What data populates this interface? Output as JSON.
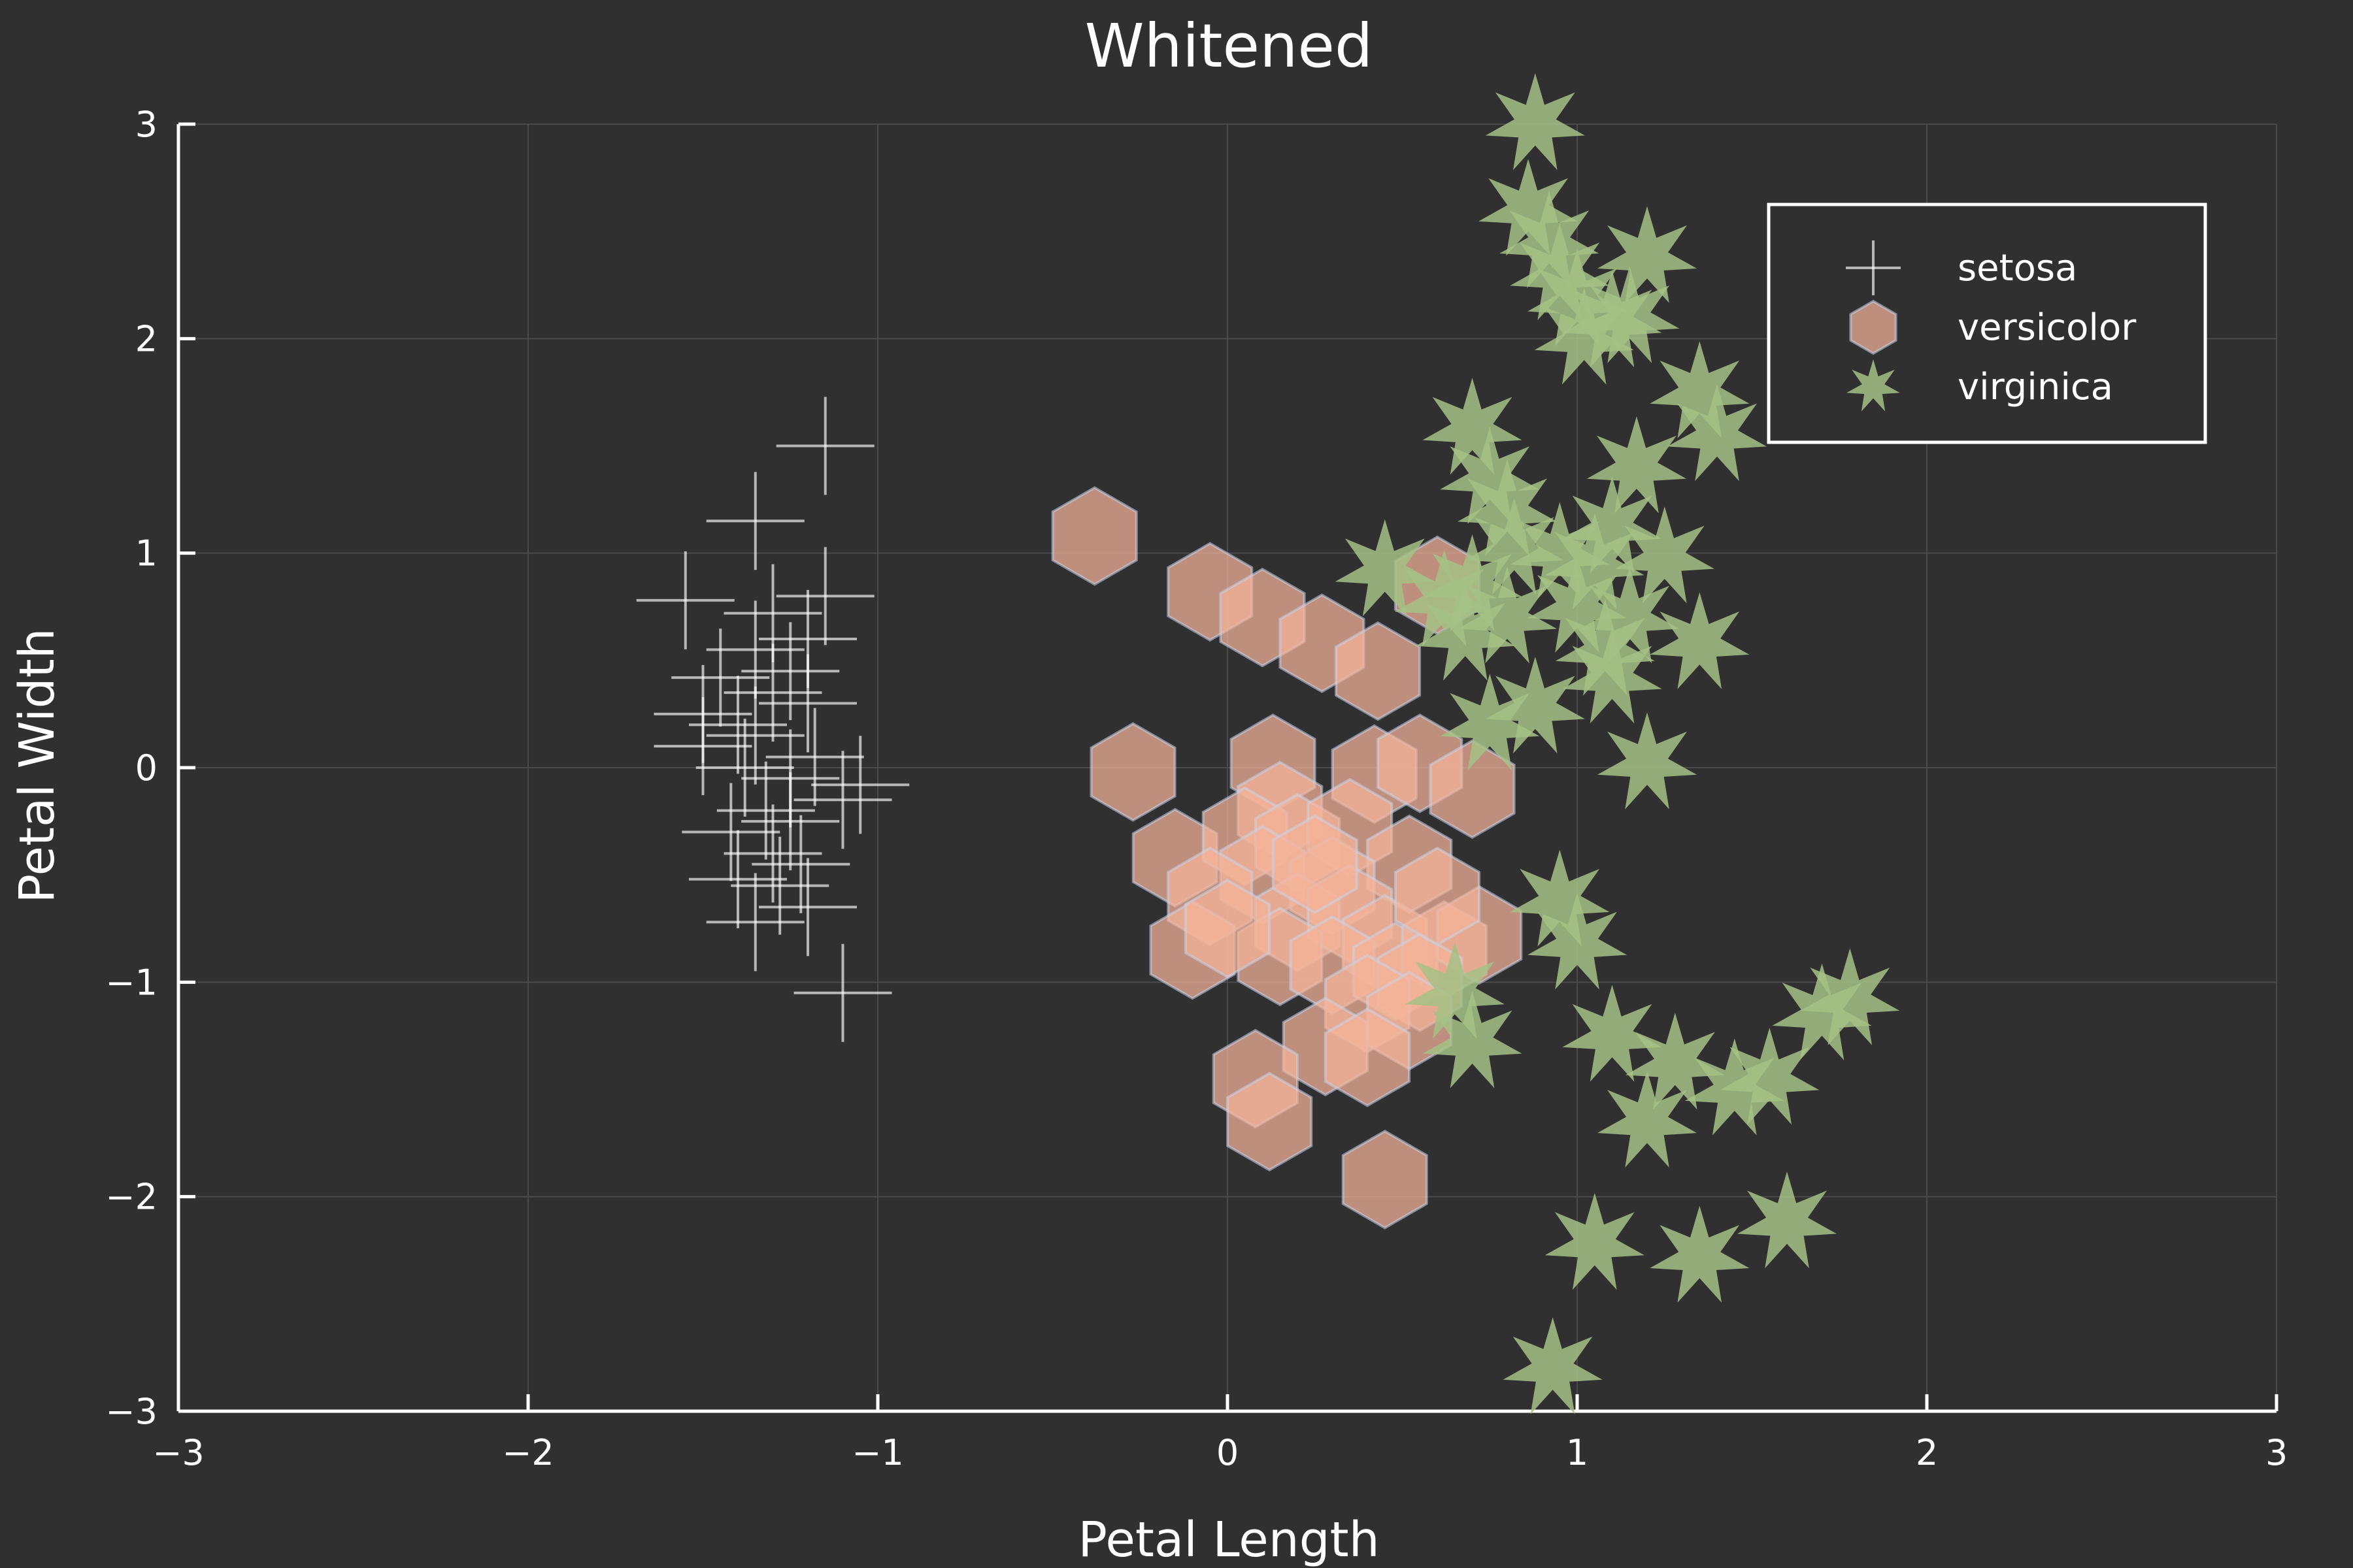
{
  "chart_data": {
    "type": "scatter",
    "title": "Whitened",
    "xlabel": "Petal Length",
    "ylabel": "Petal Width",
    "xlim": [
      -3,
      3
    ],
    "ylim": [
      -3,
      3
    ],
    "xticks": [
      -3,
      -2,
      -1,
      0,
      1,
      2,
      3
    ],
    "yticks": [
      -3,
      -2,
      -1,
      0,
      1,
      2,
      3
    ],
    "xtick_labels": [
      "−3",
      "−2",
      "−1",
      "0",
      "1",
      "2",
      "3"
    ],
    "ytick_labels": [
      "−3",
      "−2",
      "−1",
      "0",
      "1",
      "2",
      "3"
    ],
    "grid": true,
    "legend_position": "top-right",
    "colors": {
      "background": "#303030",
      "text": "#ffffff",
      "grid": "#4a4a4a"
    },
    "series": [
      {
        "name": "setosa",
        "marker": "cross",
        "color": "#ffffff",
        "points": [
          [
            -1.15,
            1.5
          ],
          [
            -1.35,
            1.15
          ],
          [
            -1.15,
            0.8
          ],
          [
            -1.55,
            0.78
          ],
          [
            -1.3,
            0.72
          ],
          [
            -1.2,
            0.6
          ],
          [
            -1.35,
            0.55
          ],
          [
            -1.25,
            0.45
          ],
          [
            -1.45,
            0.42
          ],
          [
            -1.3,
            0.35
          ],
          [
            -1.2,
            0.3
          ],
          [
            -1.5,
            0.25
          ],
          [
            -1.4,
            0.2
          ],
          [
            -1.35,
            0.15
          ],
          [
            -1.5,
            0.1
          ],
          [
            -1.38,
            0.0
          ],
          [
            -1.25,
            -0.05
          ],
          [
            -1.05,
            -0.08
          ],
          [
            -1.1,
            -0.15
          ],
          [
            -1.32,
            -0.2
          ],
          [
            -1.25,
            -0.25
          ],
          [
            -1.3,
            -0.4
          ],
          [
            -1.22,
            -0.45
          ],
          [
            -1.4,
            -0.52
          ],
          [
            -1.2,
            -0.65
          ],
          [
            -1.35,
            -0.72
          ],
          [
            -1.1,
            -1.05
          ],
          [
            -1.28,
            -0.55
          ],
          [
            -1.42,
            -0.3
          ],
          [
            -1.18,
            0.05
          ]
        ]
      },
      {
        "name": "versicolor",
        "marker": "hexagon",
        "color": "#f4b49a",
        "points": [
          [
            -0.38,
            1.08
          ],
          [
            -0.05,
            0.82
          ],
          [
            0.1,
            0.7
          ],
          [
            0.27,
            0.58
          ],
          [
            0.43,
            0.45
          ],
          [
            0.6,
            0.85
          ],
          [
            -0.27,
            -0.02
          ],
          [
            0.13,
            0.02
          ],
          [
            0.42,
            -0.03
          ],
          [
            0.55,
            0.02
          ],
          [
            0.7,
            -0.1
          ],
          [
            0.15,
            -0.2
          ],
          [
            -0.15,
            -0.42
          ],
          [
            0.05,
            -0.32
          ],
          [
            0.2,
            -0.35
          ],
          [
            0.35,
            -0.28
          ],
          [
            0.52,
            -0.45
          ],
          [
            0.1,
            -0.5
          ],
          [
            0.3,
            -0.55
          ],
          [
            -0.05,
            -0.6
          ],
          [
            0.2,
            -0.72
          ],
          [
            0.35,
            -0.68
          ],
          [
            0.45,
            -0.82
          ],
          [
            -0.1,
            -0.85
          ],
          [
            0.15,
            -0.88
          ],
          [
            0.3,
            -0.92
          ],
          [
            0.48,
            -0.95
          ],
          [
            0.62,
            -0.85
          ],
          [
            0.72,
            -0.78
          ],
          [
            0.55,
            -1.0
          ],
          [
            0.4,
            -1.1
          ],
          [
            0.52,
            -1.18
          ],
          [
            0.28,
            -1.3
          ],
          [
            0.4,
            -1.35
          ],
          [
            0.08,
            -1.45
          ],
          [
            0.12,
            -1.65
          ],
          [
            0.45,
            -1.92
          ],
          [
            0.6,
            -0.6
          ],
          [
            0.0,
            -0.75
          ],
          [
            0.25,
            -0.45
          ]
        ]
      },
      {
        "name": "virginica",
        "marker": "star",
        "color": "#a5c185",
        "points": [
          [
            0.88,
            3.0
          ],
          [
            0.86,
            2.6
          ],
          [
            0.92,
            2.45
          ],
          [
            0.95,
            2.3
          ],
          [
            1.2,
            2.38
          ],
          [
            1.0,
            2.18
          ],
          [
            1.1,
            2.08
          ],
          [
            1.15,
            2.1
          ],
          [
            1.02,
            2.0
          ],
          [
            1.35,
            1.75
          ],
          [
            1.4,
            1.55
          ],
          [
            0.7,
            1.58
          ],
          [
            0.75,
            1.35
          ],
          [
            1.17,
            1.4
          ],
          [
            0.8,
            1.2
          ],
          [
            1.1,
            1.12
          ],
          [
            0.82,
            1.02
          ],
          [
            0.95,
            1.0
          ],
          [
            1.05,
            0.95
          ],
          [
            1.25,
            0.98
          ],
          [
            0.45,
            0.92
          ],
          [
            0.62,
            0.78
          ],
          [
            0.7,
            0.85
          ],
          [
            0.8,
            0.7
          ],
          [
            1.0,
            0.75
          ],
          [
            1.15,
            0.7
          ],
          [
            0.68,
            0.62
          ],
          [
            1.08,
            0.55
          ],
          [
            1.35,
            0.58
          ],
          [
            1.1,
            0.42
          ],
          [
            0.88,
            0.28
          ],
          [
            0.75,
            0.2
          ],
          [
            1.2,
            0.02
          ],
          [
            0.95,
            -0.62
          ],
          [
            1.0,
            -0.82
          ],
          [
            0.65,
            -1.05
          ],
          [
            0.7,
            -1.28
          ],
          [
            1.1,
            -1.25
          ],
          [
            1.28,
            -1.38
          ],
          [
            1.45,
            -1.5
          ],
          [
            1.55,
            -1.45
          ],
          [
            1.7,
            -1.15
          ],
          [
            1.78,
            -1.08
          ],
          [
            1.2,
            -1.65
          ],
          [
            1.05,
            -2.22
          ],
          [
            1.35,
            -2.28
          ],
          [
            1.6,
            -2.12
          ],
          [
            0.93,
            -2.8
          ]
        ]
      }
    ]
  }
}
